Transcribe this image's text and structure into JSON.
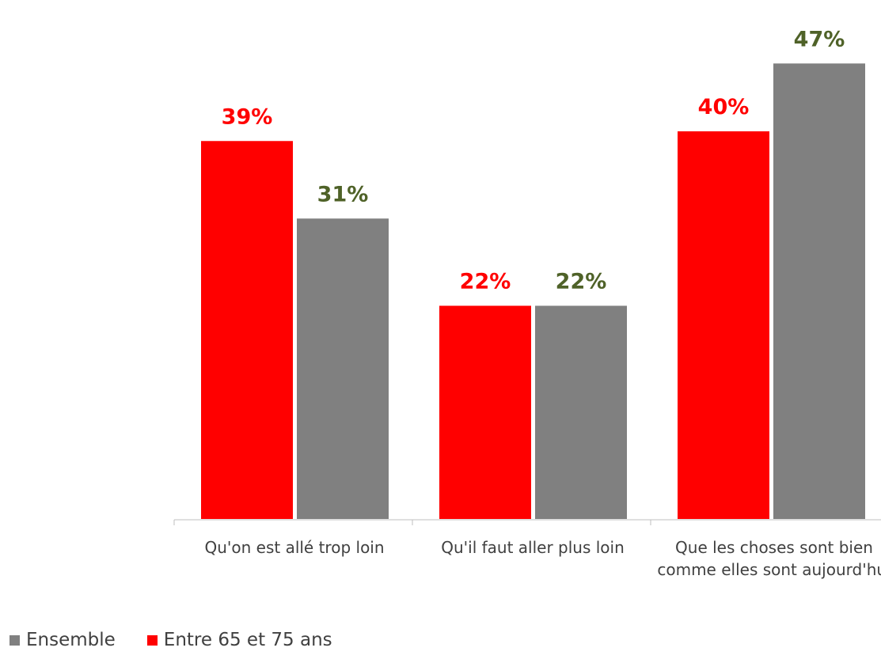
{
  "chart_data": {
    "type": "bar",
    "categories": [
      "Qu'on est allé trop loin",
      "Qu'il faut aller plus loin",
      "Que les choses sont bien comme elles sont aujourd'hui"
    ],
    "series": [
      {
        "name": "Entre 65 et 75 ans",
        "values": [
          39,
          22,
          40
        ],
        "color": "#ff0000",
        "label_color": "#ff0000"
      },
      {
        "name": "Ensemble",
        "values": [
          31,
          22,
          47
        ],
        "color": "#808080",
        "label_color": "#4f6228"
      }
    ],
    "value_suffix": "%",
    "ylim": [
      0,
      50
    ],
    "grid": false,
    "legend_position": "bottom-left"
  },
  "legend": [
    {
      "label": "Ensemble",
      "color": "#808080"
    },
    {
      "label": "Entre 65 et 75 ans",
      "color": "#ff0000"
    }
  ]
}
